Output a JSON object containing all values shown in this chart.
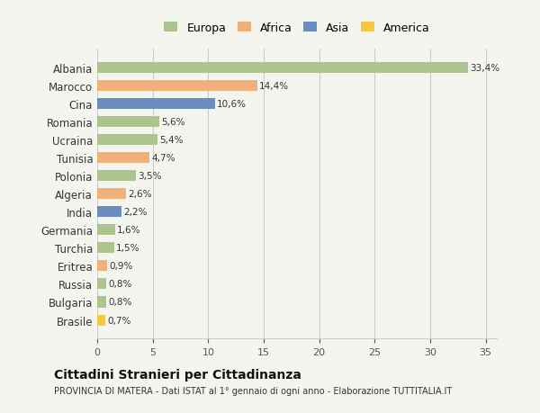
{
  "countries": [
    "Albania",
    "Marocco",
    "Cina",
    "Romania",
    "Ucraina",
    "Tunisia",
    "Polonia",
    "Algeria",
    "India",
    "Germania",
    "Turchia",
    "Eritrea",
    "Russia",
    "Bulgaria",
    "Brasile"
  ],
  "values": [
    33.4,
    14.4,
    10.6,
    5.6,
    5.4,
    4.7,
    3.5,
    2.6,
    2.2,
    1.6,
    1.5,
    0.9,
    0.8,
    0.8,
    0.7
  ],
  "labels": [
    "33,4%",
    "14,4%",
    "10,6%",
    "5,6%",
    "5,4%",
    "4,7%",
    "3,5%",
    "2,6%",
    "2,2%",
    "1,6%",
    "1,5%",
    "0,9%",
    "0,8%",
    "0,8%",
    "0,7%"
  ],
  "continents": [
    "Europa",
    "Africa",
    "Asia",
    "Europa",
    "Europa",
    "Africa",
    "Europa",
    "Africa",
    "Asia",
    "Europa",
    "Europa",
    "Africa",
    "Europa",
    "Europa",
    "America"
  ],
  "colors": {
    "Europa": "#aec48e",
    "Africa": "#f0b07a",
    "Asia": "#6b8cbf",
    "America": "#f5c842"
  },
  "background_color": "#f5f5f0",
  "xlim": [
    0,
    36
  ],
  "xticks": [
    0,
    5,
    10,
    15,
    20,
    25,
    30,
    35
  ],
  "legend_entries": [
    "Europa",
    "Africa",
    "Asia",
    "America"
  ],
  "title": "Cittadini Stranieri per Cittadinanza",
  "subtitle": "PROVINCIA DI MATERA - Dati ISTAT al 1° gennaio di ogni anno - Elaborazione TUTTITALIA.IT"
}
